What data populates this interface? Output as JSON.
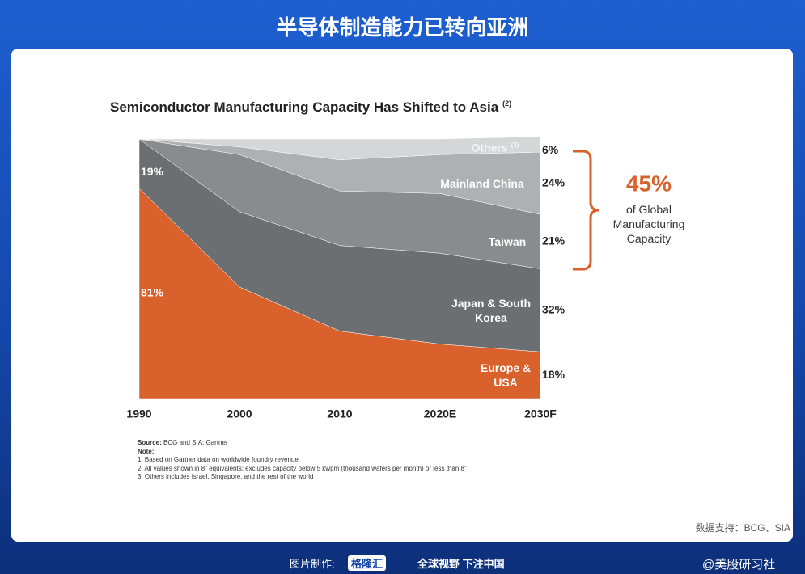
{
  "header": {
    "title": "半导体制造能力已转向亚洲"
  },
  "chart_data": {
    "type": "area",
    "stacked": true,
    "title": "Semiconductor Manufacturing Capacity Has Shifted to Asia",
    "title_note": "(2)",
    "categories": [
      "1990",
      "2000",
      "2010",
      "2020E",
      "2030F"
    ],
    "ylim": [
      0,
      100
    ],
    "series": [
      {
        "name": "Europe & USA",
        "color": "#d8612c",
        "values": [
          81,
          43,
          26,
          21,
          18
        ],
        "value_labels": [
          "81%",
          null,
          null,
          null,
          "18%"
        ]
      },
      {
        "name": "Japan & South Korea",
        "color": "#6c6f72",
        "values": [
          19,
          29,
          33,
          35,
          32
        ],
        "value_labels": [
          "19%",
          null,
          null,
          null,
          "32%"
        ]
      },
      {
        "name": "Taiwan",
        "color": "#898c8f",
        "values": [
          0,
          22,
          21,
          23,
          21
        ],
        "value_labels": [
          null,
          null,
          null,
          null,
          "21%"
        ]
      },
      {
        "name": "Mainland China",
        "color": "#aeb0b3",
        "values": [
          0,
          3,
          12,
          15,
          24
        ],
        "value_labels": [
          null,
          null,
          null,
          null,
          "24%"
        ]
      },
      {
        "name": "Others",
        "name_note": "(3)",
        "color": "#d4d6d8",
        "values": [
          0,
          3,
          8,
          6,
          6
        ],
        "value_labels": [
          null,
          null,
          null,
          null,
          "6%"
        ]
      }
    ],
    "annotation": {
      "value": "45%",
      "text": "of Global Manufacturing Capacity"
    },
    "source": {
      "label": "Source:",
      "text": "BCG and SIA; Gartner"
    },
    "notes": {
      "label": "Note:",
      "items": [
        "1. Based on Gartner data on worldwide foundry revenue",
        "2. All values shown in 8\" equivalents; excludes capacity below 5 kwpm (thousand wafers per month) or less than 8\"",
        "3. Others includes Israel, Singapore, and the rest of the world"
      ]
    }
  },
  "watermark": {
    "text": "数据支持：BCG、SIA"
  },
  "footer": {
    "made_by": "图片制作:",
    "brand": "格隆汇",
    "slogan": "全球视野 下注中国",
    "handle": "@美股研习社"
  }
}
